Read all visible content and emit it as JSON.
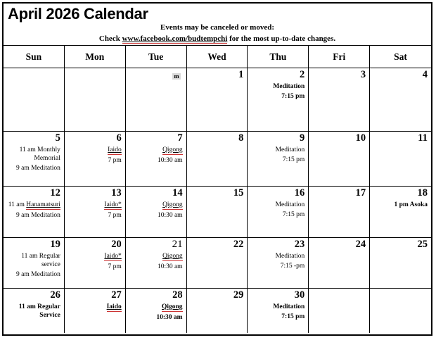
{
  "title": "April 2026 Calendar",
  "notice": {
    "line1": "Events may be canceled or moved:",
    "line2_prefix": "Check ",
    "link": "www.facebook.com/budtempchi",
    "line2_suffix": " for the most up-to-date changes."
  },
  "colors": {
    "spell_underline": "#cc3333",
    "marker_highlight": "#d9d9d9",
    "grid_line": "#000000"
  },
  "day_headers": [
    "Sun",
    "Mon",
    "Tue",
    "Wed",
    "Thu",
    "Fri",
    "Sat"
  ],
  "weeks": [
    [
      {},
      {},
      {
        "marker": "m"
      },
      {
        "day": "1"
      },
      {
        "day": "2",
        "events": [
          [
            {
              "t": "Meditation",
              "s": "b"
            }
          ],
          [
            {
              "t": "7:15 pm",
              "s": "b"
            }
          ]
        ]
      },
      {
        "day": "3"
      },
      {
        "day": "4"
      }
    ],
    [
      {
        "day": "5",
        "events": [
          [
            {
              "t": "11 am Monthly Memorial"
            }
          ],
          [
            {
              "t": "9 am Meditation"
            }
          ]
        ]
      },
      {
        "day": "6",
        "events": [
          [
            {
              "t": "Iaido",
              "s": "u"
            }
          ],
          [
            {
              "t": "7 pm"
            }
          ]
        ]
      },
      {
        "day": "7",
        "events": [
          [
            {
              "t": "Qigong",
              "s": "u"
            }
          ],
          [
            {
              "t": "10:30 am"
            }
          ]
        ]
      },
      {
        "day": "8"
      },
      {
        "day": "9",
        "events": [
          [
            {
              "t": "Meditation"
            }
          ],
          [
            {
              "t": "7:15 pm"
            }
          ]
        ]
      },
      {
        "day": "10"
      },
      {
        "day": "11"
      }
    ],
    [
      {
        "day": "12",
        "events": [
          [
            {
              "t": "11 am "
            },
            {
              "t": "Hanamatsuri",
              "s": "u"
            }
          ],
          [
            {
              "t": "9 am Meditation"
            }
          ]
        ]
      },
      {
        "day": "13",
        "events": [
          [
            {
              "t": "Iaido*",
              "s": "u"
            }
          ],
          [
            {
              "t": "7 pm"
            }
          ]
        ]
      },
      {
        "day": "14",
        "events": [
          [
            {
              "t": "Qigong",
              "s": "u"
            }
          ],
          [
            {
              "t": "10:30 am"
            }
          ]
        ]
      },
      {
        "day": "15"
      },
      {
        "day": "16",
        "events": [
          [
            {
              "t": "Meditation"
            }
          ],
          [
            {
              "t": "7:15 pm"
            }
          ]
        ]
      },
      {
        "day": "17"
      },
      {
        "day": "18",
        "events": [
          [
            {
              "t": "1 pm Asoka",
              "s": "b"
            }
          ]
        ]
      }
    ],
    [
      {
        "day": "19",
        "events": [
          [
            {
              "t": "11 am Regular service"
            }
          ],
          [
            {
              "t": "9 am Meditation"
            }
          ]
        ]
      },
      {
        "day": "20",
        "events": [
          [
            {
              "t": "Iaido*",
              "s": "u"
            }
          ],
          [
            {
              "t": "7 pm"
            }
          ]
        ]
      },
      {
        "day": "21",
        "plain_day": true,
        "events": [
          [
            {
              "t": "Qigong",
              "s": "u"
            }
          ],
          [
            {
              "t": "10:30 am"
            }
          ]
        ]
      },
      {
        "day": "22"
      },
      {
        "day": "23",
        "events": [
          [
            {
              "t": "Meditation"
            }
          ],
          [
            {
              "t": "7:15 -pm"
            }
          ]
        ]
      },
      {
        "day": "24"
      },
      {
        "day": "25"
      }
    ],
    [
      {
        "day": "26",
        "events": [
          [
            {
              "t": "11 am Regular Service",
              "s": "b"
            }
          ]
        ]
      },
      {
        "day": "27",
        "events": [
          [
            {
              "t": "Iaido",
              "s": "b u"
            }
          ]
        ]
      },
      {
        "day": "28",
        "events": [
          [
            {
              "t": "Qigong",
              "s": "b u"
            }
          ],
          [
            {
              "t": "10:30 am",
              "s": "b"
            }
          ]
        ]
      },
      {
        "day": "29"
      },
      {
        "day": "30",
        "events": [
          [
            {
              "t": "Meditation",
              "s": "b"
            }
          ],
          [
            {
              "t": "7:15 pm",
              "s": "b"
            }
          ]
        ]
      },
      {},
      {}
    ]
  ]
}
